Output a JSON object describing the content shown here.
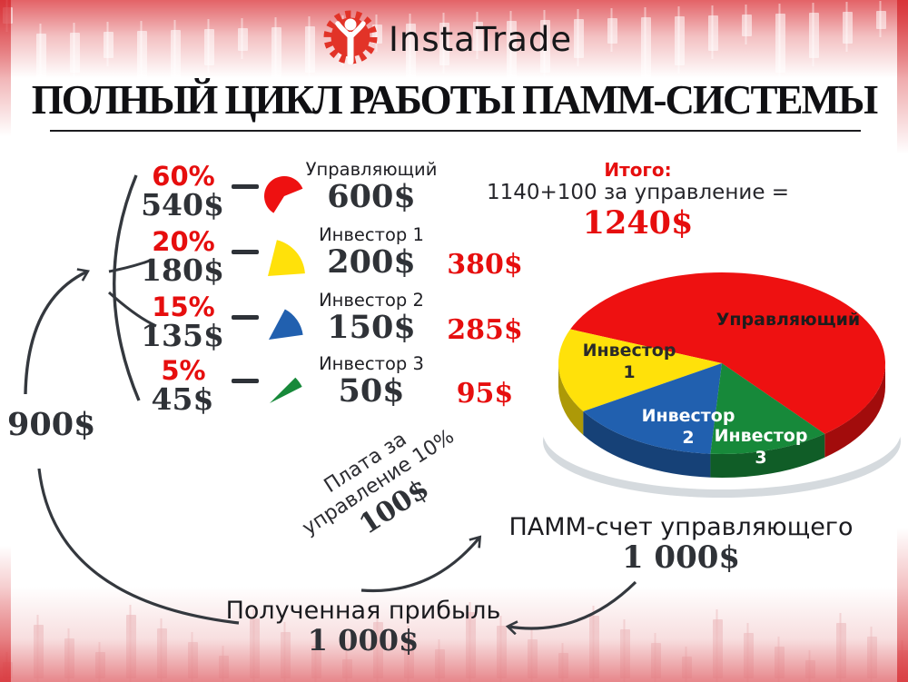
{
  "brand": {
    "name": "InstaTrade",
    "logo_icon": "gear-person-icon",
    "brand_color": "#e23328"
  },
  "title": "ПОЛНЫЙ ЦИКЛ РАБОТЫ ПАММ-СИСТЕМЫ",
  "summary": {
    "label": "Итого:",
    "formula": "1140+100 за управление =",
    "total": "1240$"
  },
  "distribution_rows": [
    {
      "percent": "60%",
      "amount": "540$",
      "label": "Управляющий",
      "value": "600$",
      "total": "",
      "color": "#ee1111"
    },
    {
      "percent": "20%",
      "amount": "180$",
      "label": "Инвестор 1",
      "value": "200$",
      "total": "380$",
      "color": "#ffe10a"
    },
    {
      "percent": "15%",
      "amount": "135$",
      "label": "Инвестор 2",
      "value": "150$",
      "total": "285$",
      "color": "#2160af"
    },
    {
      "percent": "5%",
      "amount": "45$",
      "label": "Инвестор 3",
      "value": "50$",
      "total": "95$",
      "color": "#17893a"
    }
  ],
  "flow": {
    "start_amount": "900$",
    "fee_line1": "Плата за",
    "fee_line2": "управление 10%",
    "fee_amount": "100$",
    "pamm_label": "ПАММ-счет управляющего",
    "pamm_amount": "1 000$",
    "profit_label": "Полученная прибыль",
    "profit_amount": "1 000$"
  },
  "chart_data": {
    "type": "pie",
    "title": "",
    "labels": [
      "Управляющий",
      "Инвестор 1",
      "Инвестор 2",
      "Инвестор 3"
    ],
    "values": [
      60,
      20,
      15,
      5
    ],
    "unit": "%",
    "amounts": [
      "600$",
      "200$",
      "150$",
      "50$"
    ],
    "colors": [
      "#ee1111",
      "#ffe10a",
      "#2160af",
      "#17893a"
    ],
    "label_colors": [
      "#1d1d1d",
      "#2a2a2a",
      "#ffffff",
      "#ffffff"
    ],
    "style": "3d",
    "legend_position": "on-slice"
  },
  "colors": {
    "accent_red": "#e60e0e",
    "ink": "#2f3237",
    "plate": "#d5dade"
  }
}
